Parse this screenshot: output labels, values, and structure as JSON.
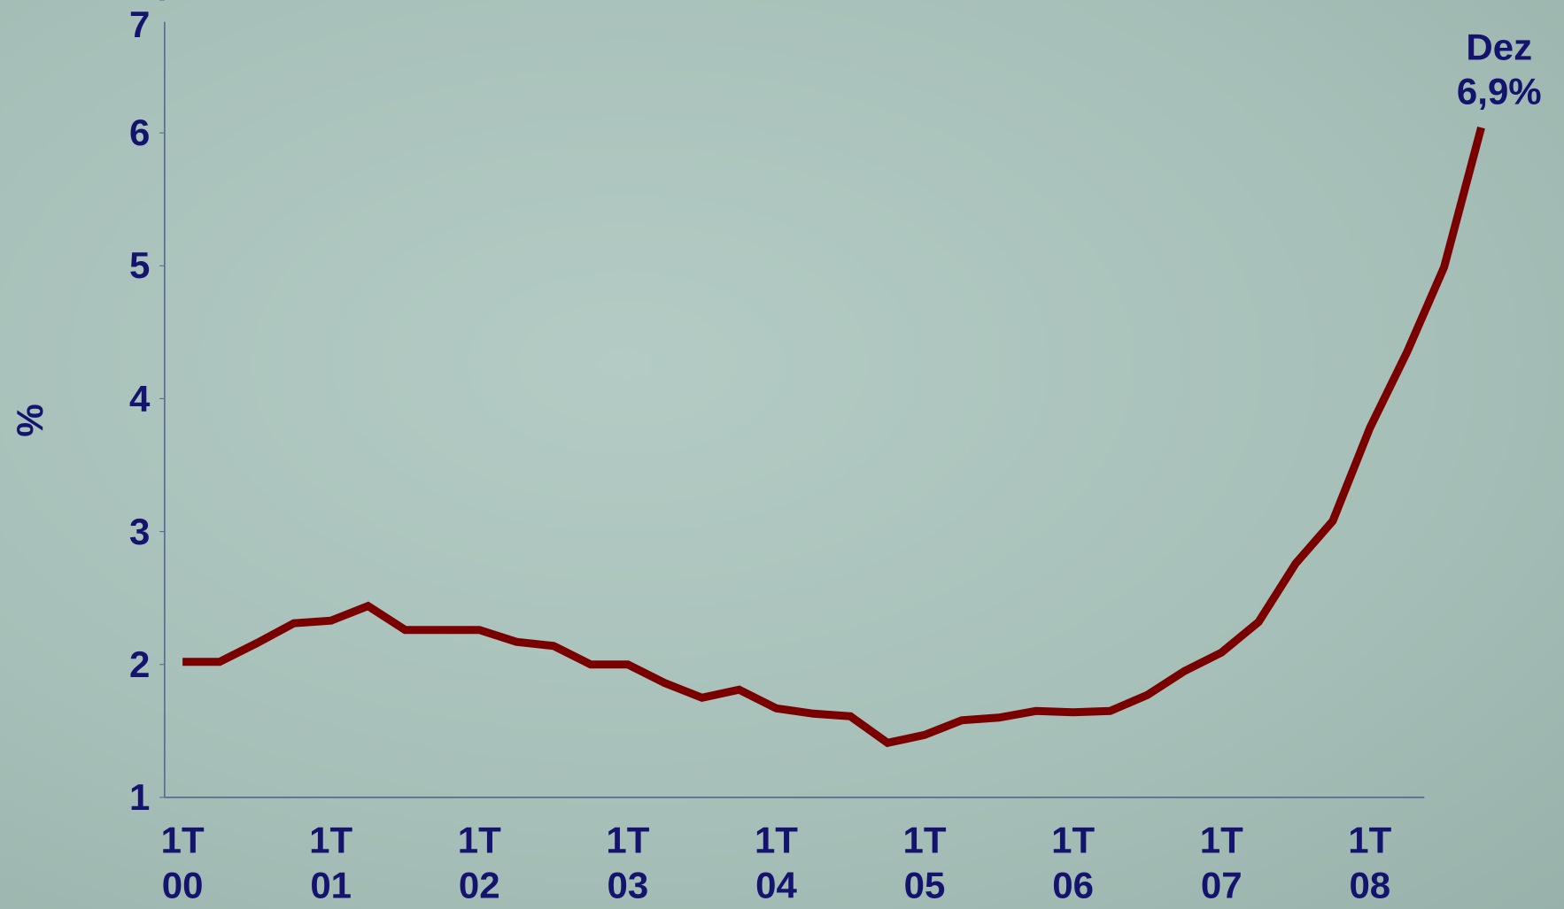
{
  "chart_data": {
    "type": "line",
    "y_label": "%",
    "annotation": "Dez\n6,9%",
    "categories": [
      "1T\n00",
      null,
      null,
      null,
      "1T\n01",
      null,
      null,
      null,
      "1T\n02",
      null,
      null,
      null,
      "1T\n03",
      null,
      null,
      null,
      "1T\n04",
      null,
      null,
      null,
      "1T\n05",
      null,
      null,
      null,
      "1T\n06",
      null,
      null,
      null,
      "1T\n07",
      null,
      null,
      null,
      "1T\n08",
      null,
      null,
      null
    ],
    "series": [
      {
        "color": "#7a0000",
        "values": [
          2.02,
          2.02,
          2.16,
          2.31,
          2.33,
          2.44,
          2.26,
          2.26,
          2.26,
          2.17,
          2.14,
          2.0,
          2.0,
          1.86,
          1.75,
          1.81,
          1.67,
          1.63,
          1.61,
          1.41,
          1.47,
          1.58,
          1.6,
          1.65,
          1.64,
          1.65,
          1.77,
          1.95,
          2.09,
          2.32,
          2.76,
          3.08,
          3.78,
          4.35,
          4.99,
          6.04
        ]
      }
    ],
    "ylim": [
      1,
      7
    ],
    "yticks": [
      1,
      2,
      3,
      4,
      5,
      6,
      7
    ]
  }
}
